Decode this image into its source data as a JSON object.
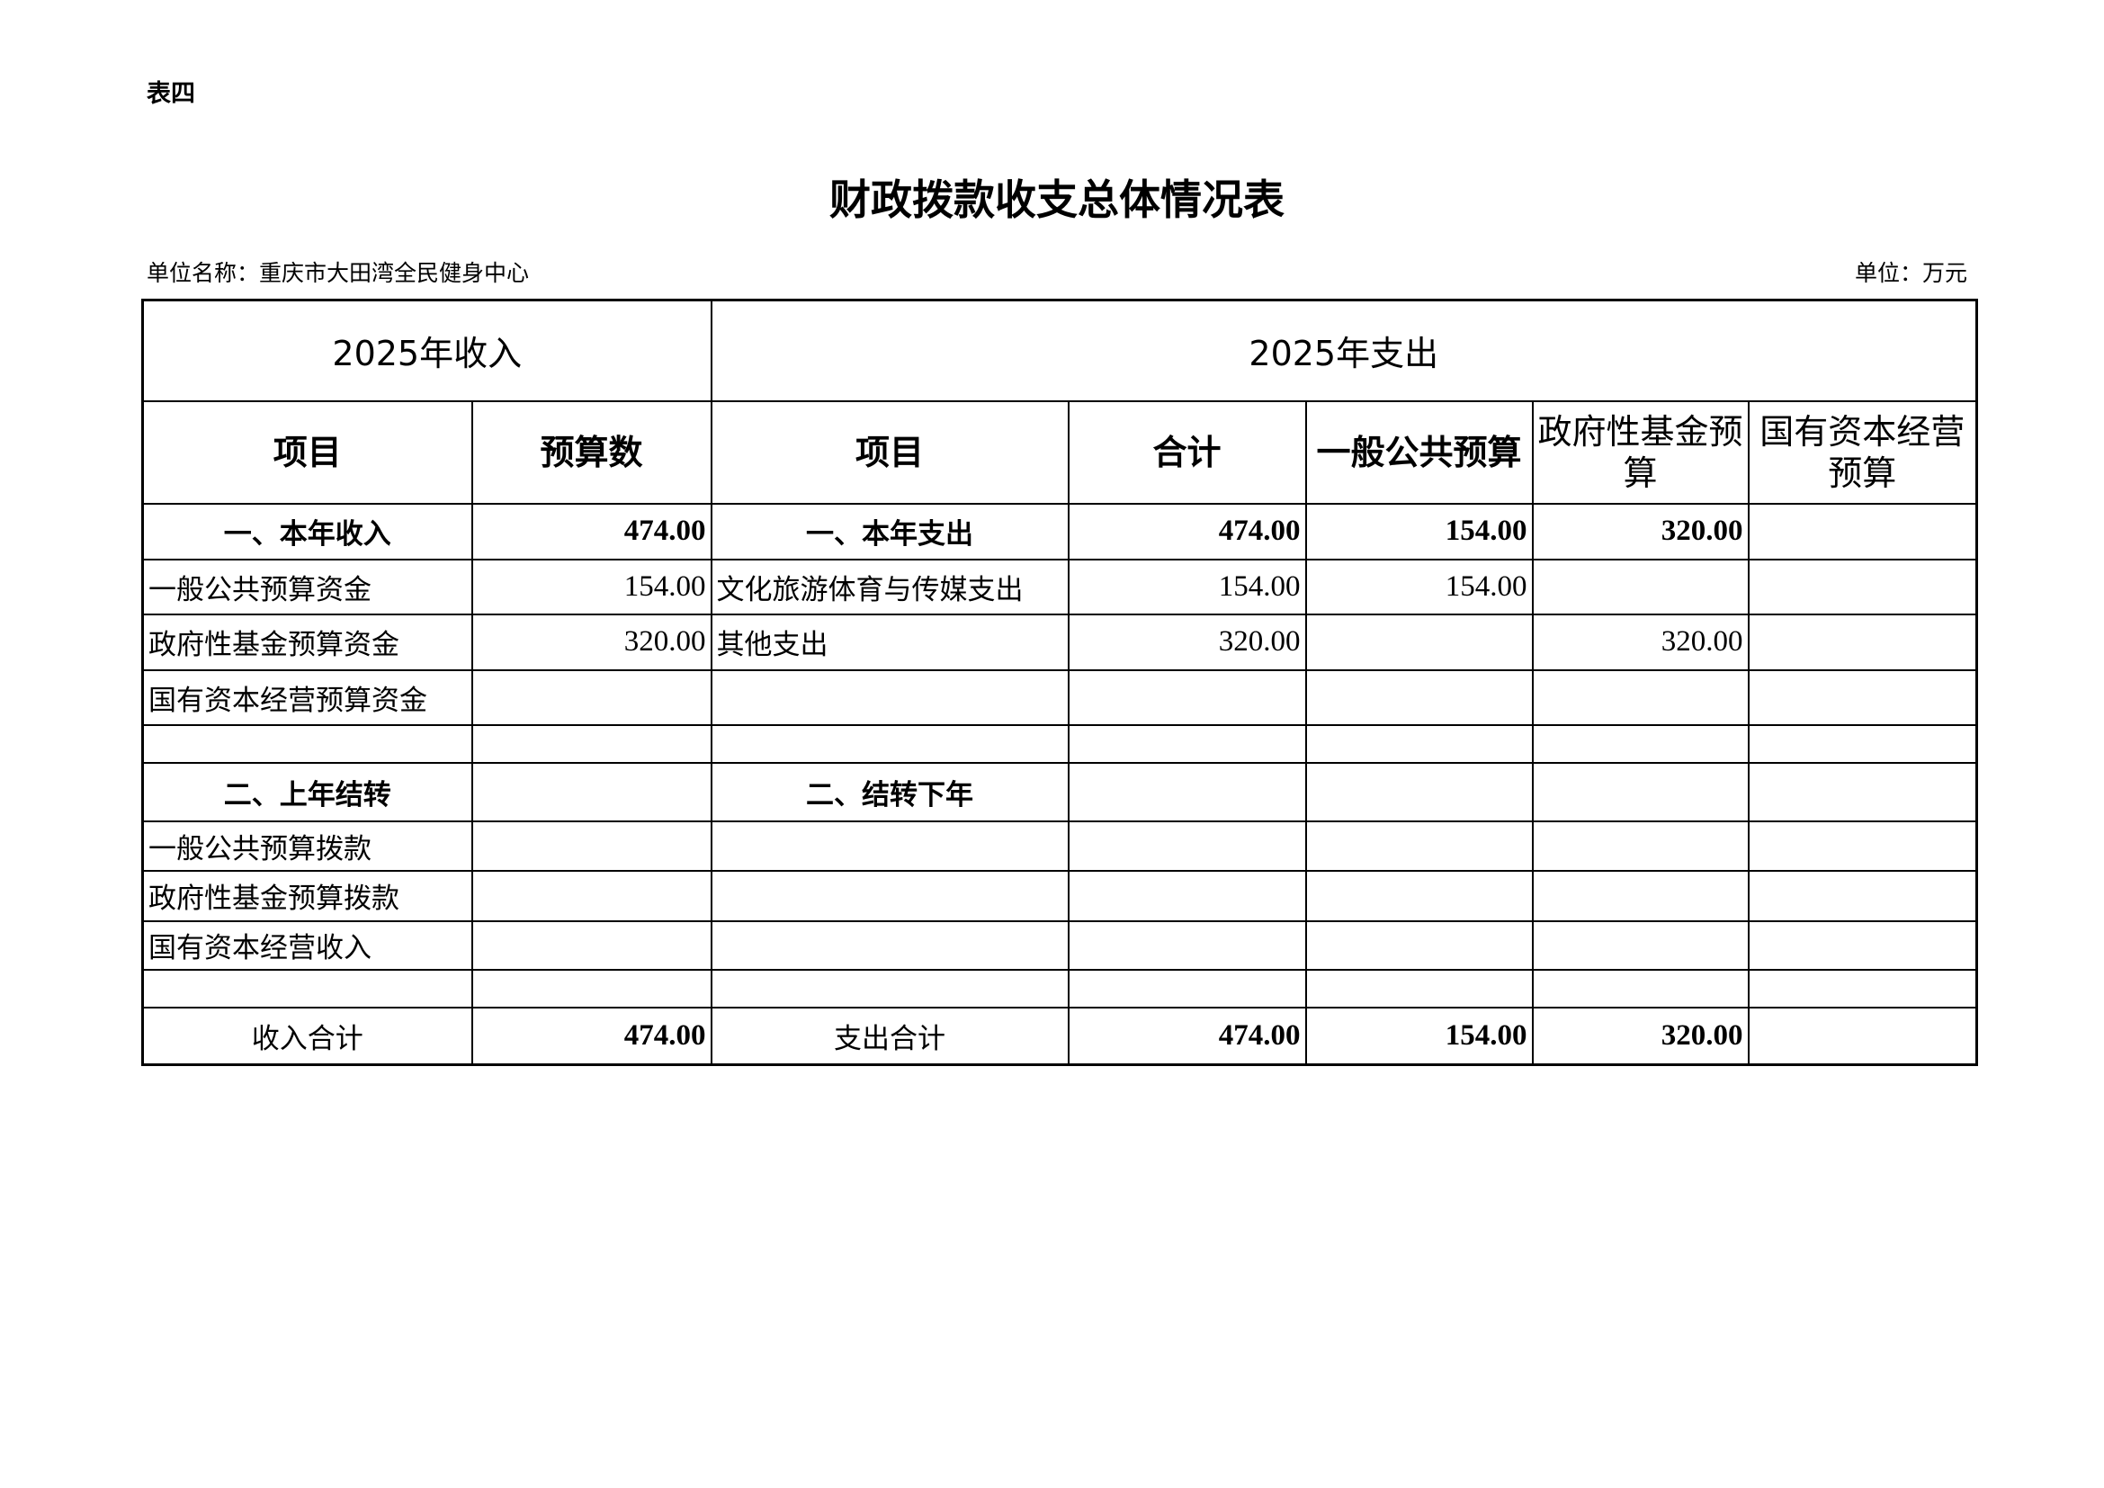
{
  "doc": {
    "tag": "表四",
    "title": "财政拨款收支总体情况表",
    "unit_name": "单位名称：重庆市大田湾全民健身中心",
    "unit": "单位：万元"
  },
  "table": {
    "income_header": "2025年收入",
    "expense_header": "2025年支出",
    "columns": [
      "项目",
      "预算数",
      "项目",
      "合计",
      "一般公共预算",
      "政府性基金预算",
      "国有资本经营预算"
    ],
    "rows": [
      [
        "一、本年收入",
        "474.00",
        "一、本年支出",
        "474.00",
        "154.00",
        "320.00",
        ""
      ],
      [
        "一般公共预算资金",
        "154.00",
        "文化旅游体育与传媒支出",
        "154.00",
        "154.00",
        "",
        ""
      ],
      [
        "政府性基金预算资金",
        "320.00",
        "其他支出",
        "320.00",
        "",
        "320.00",
        ""
      ],
      [
        "国有资本经营预算资金",
        "",
        "",
        "",
        "",
        "",
        ""
      ],
      [
        "",
        "",
        "",
        "",
        "",
        "",
        ""
      ],
      [
        "二、上年结转",
        "",
        "二、结转下年",
        "",
        "",
        "",
        ""
      ],
      [
        "一般公共预算拨款",
        "",
        "",
        "",
        "",
        "",
        ""
      ],
      [
        "政府性基金预算拨款",
        "",
        "",
        "",
        "",
        "",
        ""
      ],
      [
        "国有资本经营收入",
        "",
        "",
        "",
        "",
        "",
        ""
      ],
      [
        "",
        "",
        "",
        "",
        "",
        "",
        ""
      ],
      [
        "收入合计",
        "474.00",
        "支出合计",
        "474.00",
        "154.00",
        "320.00",
        ""
      ]
    ]
  }
}
